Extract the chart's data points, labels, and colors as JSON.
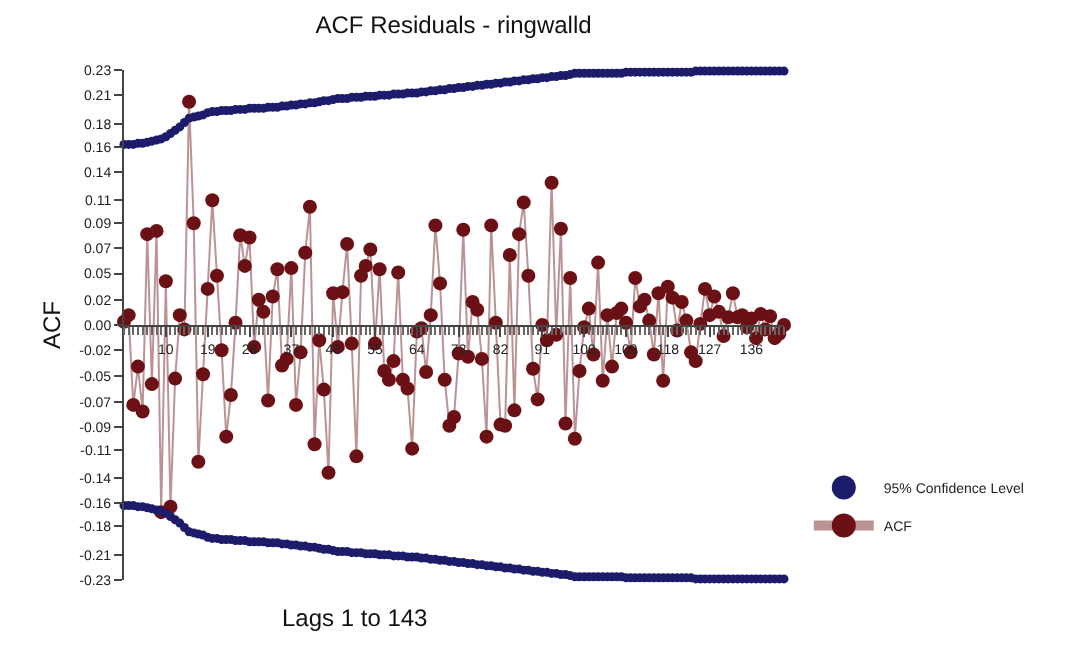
{
  "chart_data": {
    "type": "line",
    "title": "ACF Residuals - ringwalld",
    "xlabel": "Lags 1 to 143",
    "ylabel": "ACF",
    "x": [
      1,
      2,
      3,
      4,
      5,
      6,
      7,
      8,
      9,
      10,
      11,
      12,
      13,
      14,
      15,
      16,
      17,
      18,
      19,
      20,
      21,
      22,
      23,
      24,
      25,
      26,
      27,
      28,
      29,
      30,
      31,
      32,
      33,
      34,
      35,
      36,
      37,
      38,
      39,
      40,
      41,
      42,
      43,
      44,
      45,
      46,
      47,
      48,
      49,
      50,
      51,
      52,
      53,
      54,
      55,
      56,
      57,
      58,
      59,
      60,
      61,
      62,
      63,
      64,
      65,
      66,
      67,
      68,
      69,
      70,
      71,
      72,
      73,
      74,
      75,
      76,
      77,
      78,
      79,
      80,
      81,
      82,
      83,
      84,
      85,
      86,
      87,
      88,
      89,
      90,
      91,
      92,
      93,
      94,
      95,
      96,
      97,
      98,
      99,
      100,
      101,
      102,
      103,
      104,
      105,
      106,
      107,
      108,
      109,
      110,
      111,
      112,
      113,
      114,
      115,
      116,
      117,
      118,
      119,
      120,
      121,
      122,
      123,
      124,
      125,
      126,
      127,
      128,
      129,
      130,
      131,
      132,
      133,
      134,
      135,
      136,
      137,
      138,
      139,
      140,
      141,
      142,
      143
    ],
    "series": [
      {
        "name": "95% Confidence Level",
        "color": "#1c1c6b",
        "type": "scatter",
        "values": [
          0.165,
          0.165,
          0.165,
          0.166,
          0.166,
          0.167,
          0.168,
          0.169,
          0.17,
          0.172,
          0.175,
          0.178,
          0.181,
          0.185,
          0.189,
          0.19,
          0.191,
          0.192,
          0.194,
          0.195,
          0.195,
          0.196,
          0.196,
          0.196,
          0.197,
          0.197,
          0.197,
          0.198,
          0.198,
          0.198,
          0.198,
          0.199,
          0.199,
          0.199,
          0.2,
          0.2,
          0.201,
          0.201,
          0.202,
          0.202,
          0.203,
          0.203,
          0.204,
          0.205,
          0.205,
          0.206,
          0.207,
          0.207,
          0.207,
          0.208,
          0.208,
          0.208,
          0.209,
          0.209,
          0.209,
          0.21,
          0.21,
          0.21,
          0.211,
          0.211,
          0.211,
          0.212,
          0.212,
          0.212,
          0.213,
          0.213,
          0.214,
          0.214,
          0.215,
          0.215,
          0.216,
          0.216,
          0.217,
          0.217,
          0.218,
          0.218,
          0.219,
          0.219,
          0.22,
          0.22,
          0.221,
          0.221,
          0.222,
          0.222,
          0.223,
          0.223,
          0.224,
          0.224,
          0.225,
          0.225,
          0.226,
          0.226,
          0.227,
          0.227,
          0.228,
          0.228,
          0.229,
          0.23,
          0.23,
          0.23,
          0.23,
          0.23,
          0.23,
          0.23,
          0.23,
          0.23,
          0.23,
          0.23,
          0.231,
          0.231,
          0.231,
          0.231,
          0.231,
          0.231,
          0.231,
          0.231,
          0.231,
          0.231,
          0.231,
          0.231,
          0.231,
          0.231,
          0.231,
          0.232,
          0.232,
          0.232,
          0.232,
          0.232,
          0.232,
          0.232,
          0.232,
          0.232,
          0.232,
          0.232,
          0.232,
          0.232,
          0.232,
          0.232,
          0.232,
          0.232,
          0.232,
          0.232,
          0.232
        ]
      },
      {
        "color": "#1c1c6b",
        "type": "scatter",
        "values": [
          -0.165,
          -0.165,
          -0.165,
          -0.166,
          -0.166,
          -0.167,
          -0.168,
          -0.169,
          -0.17,
          -0.172,
          -0.175,
          -0.178,
          -0.181,
          -0.185,
          -0.189,
          -0.19,
          -0.191,
          -0.192,
          -0.194,
          -0.195,
          -0.195,
          -0.196,
          -0.196,
          -0.196,
          -0.197,
          -0.197,
          -0.197,
          -0.198,
          -0.198,
          -0.198,
          -0.198,
          -0.199,
          -0.199,
          -0.199,
          -0.2,
          -0.2,
          -0.201,
          -0.201,
          -0.202,
          -0.202,
          -0.203,
          -0.203,
          -0.204,
          -0.205,
          -0.205,
          -0.206,
          -0.207,
          -0.207,
          -0.207,
          -0.208,
          -0.208,
          -0.208,
          -0.209,
          -0.209,
          -0.209,
          -0.21,
          -0.21,
          -0.21,
          -0.211,
          -0.211,
          -0.211,
          -0.212,
          -0.212,
          -0.212,
          -0.213,
          -0.213,
          -0.214,
          -0.214,
          -0.215,
          -0.215,
          -0.216,
          -0.216,
          -0.217,
          -0.217,
          -0.218,
          -0.218,
          -0.219,
          -0.219,
          -0.22,
          -0.22,
          -0.221,
          -0.221,
          -0.222,
          -0.222,
          -0.223,
          -0.223,
          -0.224,
          -0.224,
          -0.225,
          -0.225,
          -0.226,
          -0.226,
          -0.227,
          -0.227,
          -0.228,
          -0.228,
          -0.229,
          -0.23,
          -0.23,
          -0.23,
          -0.23,
          -0.23,
          -0.23,
          -0.23,
          -0.23,
          -0.23,
          -0.23,
          -0.23,
          -0.231,
          -0.231,
          -0.231,
          -0.231,
          -0.231,
          -0.231,
          -0.231,
          -0.231,
          -0.231,
          -0.231,
          -0.231,
          -0.231,
          -0.231,
          -0.231,
          -0.231,
          -0.232,
          -0.232,
          -0.232,
          -0.232,
          -0.232,
          -0.232,
          -0.232,
          -0.232,
          -0.232,
          -0.232,
          -0.232,
          -0.232,
          -0.232,
          -0.232,
          -0.232,
          -0.232,
          -0.232,
          -0.232,
          -0.232,
          -0.232
        ]
      },
      {
        "name": "ACF",
        "color": "#6b1015",
        "values": [
          0.003,
          0.009,
          -0.073,
          -0.038,
          -0.079,
          0.083,
          -0.054,
          0.086,
          -0.171,
          0.04,
          -0.166,
          -0.049,
          0.009,
          -0.004,
          0.204,
          0.093,
          -0.125,
          -0.045,
          0.033,
          0.114,
          0.045,
          -0.023,
          -0.102,
          -0.064,
          0.002,
          0.082,
          0.054,
          0.08,
          -0.02,
          0.023,
          0.012,
          -0.069,
          0.026,
          0.051,
          -0.037,
          -0.031,
          0.052,
          -0.073,
          -0.025,
          0.066,
          0.108,
          -0.109,
          -0.014,
          -0.059,
          -0.135,
          0.029,
          -0.02,
          0.03,
          0.074,
          -0.017,
          -0.12,
          0.045,
          0.054,
          0.069,
          -0.017,
          0.051,
          -0.042,
          -0.05,
          -0.033,
          0.048,
          -0.05,
          -0.058,
          -0.113,
          -0.006,
          -0.003,
          -0.043,
          0.009,
          0.091,
          0.038,
          -0.05,
          -0.092,
          -0.084,
          -0.026,
          0.087,
          -0.029,
          0.021,
          0.014,
          -0.031,
          -0.102,
          0.091,
          0.002,
          -0.091,
          -0.092,
          0.064,
          -0.078,
          0.083,
          0.112,
          0.045,
          -0.04,
          -0.068,
          0.0,
          -0.014,
          0.13,
          -0.009,
          0.088,
          -0.09,
          0.043,
          -0.104,
          -0.042,
          -0.002,
          0.015,
          -0.027,
          0.057,
          -0.051,
          0.009,
          -0.038,
          0.011,
          0.015,
          0.002,
          -0.025,
          0.043,
          0.017,
          0.023,
          0.004,
          -0.027,
          0.029,
          -0.051,
          0.035,
          0.025,
          -0.005,
          0.021,
          0.004,
          -0.025,
          -0.033,
          0.001,
          0.033,
          0.009,
          0.026,
          0.012,
          -0.01,
          0.007,
          0.029,
          0.007,
          0.009,
          -0.002,
          0.006,
          -0.012,
          0.01,
          -0.004,
          0.008,
          -0.012,
          -0.008,
          0.0
        ]
      }
    ],
    "xlim": [
      1,
      143
    ],
    "xticks": [
      10,
      19,
      28,
      37,
      46,
      55,
      64,
      73,
      82,
      91,
      100,
      109,
      118,
      127,
      136
    ],
    "ylim": [
      -0.233,
      0.233
    ],
    "yticks": [
      {
        "value": -0.233,
        "label": "-0.23"
      },
      {
        "value": -0.21,
        "label": "-0.21"
      },
      {
        "value": -0.184,
        "label": "-0.18"
      },
      {
        "value": -0.163,
        "label": "-0.16"
      },
      {
        "value": -0.14,
        "label": "-0.14"
      },
      {
        "value": -0.114,
        "label": "-0.11"
      },
      {
        "value": -0.093,
        "label": "-0.09"
      },
      {
        "value": -0.07,
        "label": "-0.07"
      },
      {
        "value": -0.047,
        "label": "-0.05"
      },
      {
        "value": -0.023,
        "label": "-0.02"
      },
      {
        "value": 0,
        "label": "0.00"
      },
      {
        "value": 0.023,
        "label": "0.02"
      },
      {
        "value": 0.047,
        "label": "0.05"
      },
      {
        "value": 0.07,
        "label": "0.07"
      },
      {
        "value": 0.093,
        "label": "0.09"
      },
      {
        "value": 0.114,
        "label": "0.11"
      },
      {
        "value": 0.14,
        "label": "0.14"
      },
      {
        "value": 0.163,
        "label": "0.16"
      },
      {
        "value": 0.184,
        "label": "0.18"
      },
      {
        "value": 0.21,
        "label": "0.21"
      },
      {
        "value": 0.233,
        "label": "0.23"
      }
    ],
    "marker": "circle",
    "legend": "right"
  }
}
